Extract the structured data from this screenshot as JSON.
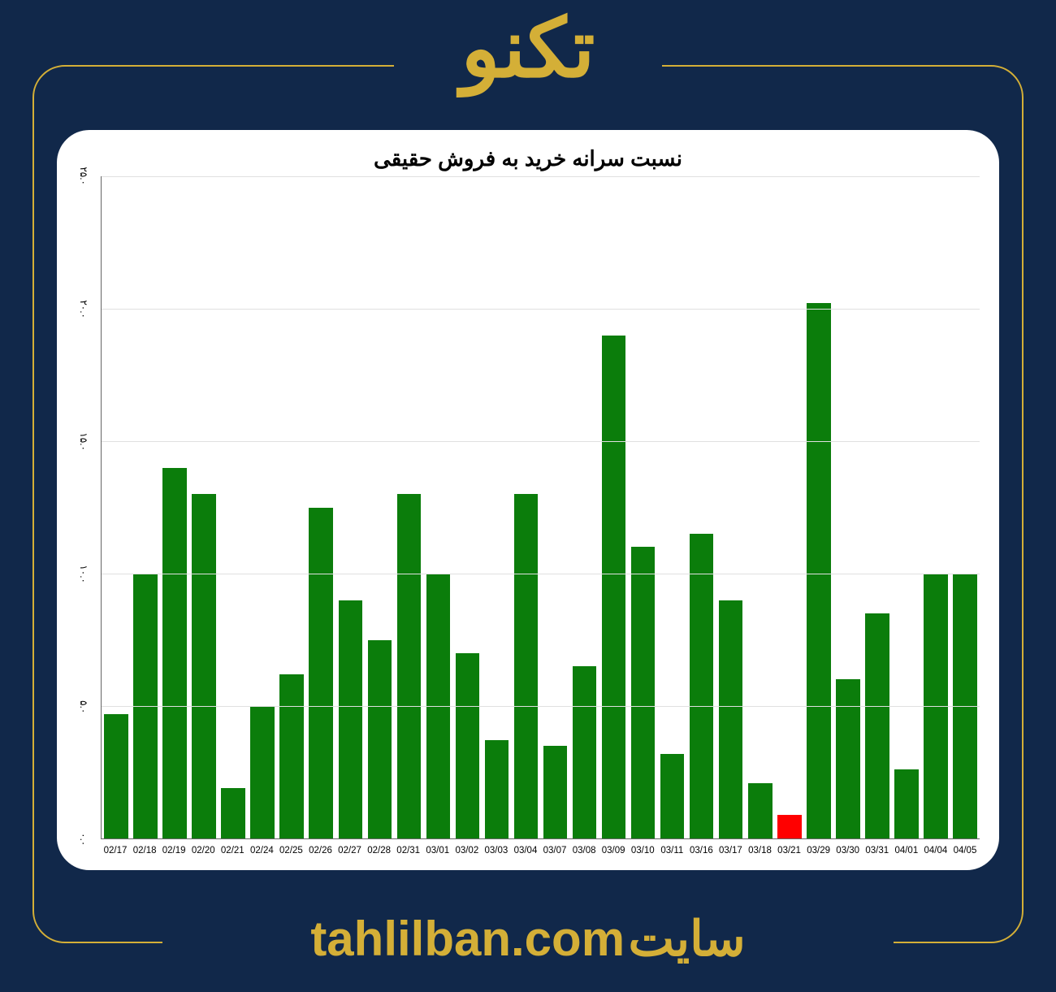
{
  "header": {
    "title": "تکنو",
    "title_color": "#d4af37",
    "title_fontsize": 100
  },
  "footer": {
    "label": "سایت",
    "url": "tahlilban.com",
    "color": "#d4af37",
    "fontsize": 60
  },
  "frame": {
    "border_color": "#d4af37",
    "background_color": "#11284a",
    "border_radius": 40
  },
  "chart": {
    "type": "bar",
    "title": "نسبت سرانه خرید به فروش حقیقی",
    "title_fontsize": 26,
    "title_color": "#000000",
    "background_color": "#ffffff",
    "grid_color": "#e0e0e0",
    "axis_color": "#666666",
    "ylim": [
      0,
      25
    ],
    "ytick_step": 5,
    "ytick_labels": [
      "۰.۰",
      "۵.۰",
      "۱۰.۰",
      "۱۵.۰",
      "۲۰.۰",
      "۲۵.۰"
    ],
    "ylabel_fontsize": 12,
    "xlabel_fontsize": 11.5,
    "bar_width_ratio": 0.82,
    "positive_color": "#0b7d0b",
    "negative_color": "#ff0000",
    "categories": [
      "02/17",
      "02/18",
      "02/19",
      "02/20",
      "02/21",
      "02/24",
      "02/25",
      "02/26",
      "02/27",
      "02/28",
      "02/31",
      "03/01",
      "03/02",
      "03/03",
      "03/04",
      "03/07",
      "03/08",
      "03/09",
      "03/10",
      "03/11",
      "03/16",
      "03/17",
      "03/18",
      "03/21",
      "03/29",
      "03/30",
      "03/31",
      "04/01",
      "04/04",
      "04/05"
    ],
    "values": [
      4.7,
      10.0,
      14.0,
      13.0,
      1.9,
      5.0,
      6.2,
      12.5,
      9.0,
      7.5,
      13.0,
      10.0,
      7.0,
      3.7,
      13.0,
      3.5,
      6.5,
      19.0,
      11.0,
      3.2,
      11.5,
      9.0,
      2.1,
      0.9,
      20.2,
      6.0,
      8.5,
      2.6,
      10.0,
      10.0
    ],
    "bar_colors": [
      "#0b7d0b",
      "#0b7d0b",
      "#0b7d0b",
      "#0b7d0b",
      "#0b7d0b",
      "#0b7d0b",
      "#0b7d0b",
      "#0b7d0b",
      "#0b7d0b",
      "#0b7d0b",
      "#0b7d0b",
      "#0b7d0b",
      "#0b7d0b",
      "#0b7d0b",
      "#0b7d0b",
      "#0b7d0b",
      "#0b7d0b",
      "#0b7d0b",
      "#0b7d0b",
      "#0b7d0b",
      "#0b7d0b",
      "#0b7d0b",
      "#0b7d0b",
      "#ff0000",
      "#0b7d0b",
      "#0b7d0b",
      "#0b7d0b",
      "#0b7d0b",
      "#0b7d0b",
      "#0b7d0b"
    ]
  }
}
